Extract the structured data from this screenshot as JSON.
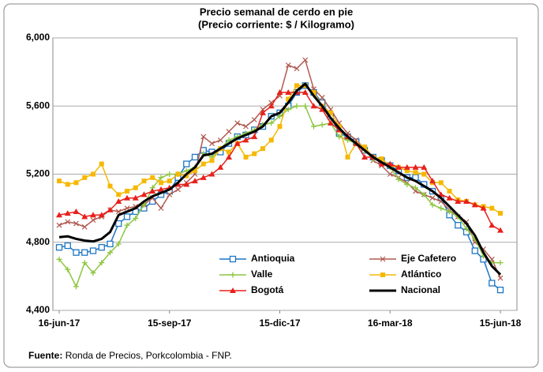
{
  "chart_data": {
    "type": "line",
    "title": "Precio semanal de cerdo en pie",
    "subtitle": "(Precio corriente: $ / Kilogramo)",
    "categories": [
      "16-jun-17",
      null,
      null,
      null,
      null,
      null,
      null,
      null,
      null,
      null,
      null,
      null,
      null,
      "15-sep-17",
      null,
      null,
      null,
      null,
      null,
      null,
      null,
      null,
      null,
      null,
      null,
      null,
      "15-dic-17",
      null,
      null,
      null,
      null,
      null,
      null,
      null,
      null,
      null,
      null,
      null,
      null,
      "16-mar-18",
      null,
      null,
      null,
      null,
      null,
      null,
      null,
      null,
      null,
      null,
      null,
      null,
      "15-jun-18"
    ],
    "ylim": [
      4400,
      6000
    ],
    "yticks": [
      {
        "value": 4400,
        "label": "4,400"
      },
      {
        "value": 4800,
        "label": "4,800"
      },
      {
        "value": 5200,
        "label": "5,200"
      },
      {
        "value": 5600,
        "label": "5,600"
      },
      {
        "value": 6000,
        "label": "6,000"
      }
    ],
    "grid": true,
    "legend": "bottom-right",
    "series": [
      {
        "name": "Antioquia",
        "color": "#1f77c4",
        "marker": "square-open",
        "values": [
          4770,
          4780,
          4740,
          4740,
          4750,
          4770,
          4790,
          4910,
          4950,
          4980,
          5000,
          5040,
          5080,
          5100,
          5180,
          5260,
          5300,
          5340,
          5330,
          5330,
          5380,
          5420,
          5430,
          5460,
          5480,
          5540,
          5560,
          5600,
          5680,
          5720,
          5680,
          5620,
          5540,
          5440,
          5420,
          5390,
          5340,
          5300,
          5280,
          5250,
          5220,
          5180,
          5180,
          5140,
          5100,
          5060,
          4960,
          4900,
          4860,
          4750,
          4700,
          4560,
          4520
        ]
      },
      {
        "name": "Eje Cafetero",
        "color": "#b05a50",
        "marker": "x",
        "values": [
          4900,
          4920,
          4910,
          4890,
          4930,
          4950,
          4990,
          4980,
          5000,
          5010,
          5020,
          5060,
          5000,
          5080,
          5110,
          5150,
          5200,
          5420,
          5380,
          5400,
          5450,
          5500,
          5480,
          5520,
          5580,
          5620,
          5660,
          5840,
          5820,
          5870,
          5700,
          5650,
          5580,
          5500,
          5440,
          5400,
          5350,
          5280,
          5250,
          5200,
          5180,
          5150,
          5100,
          5080,
          5060,
          5040,
          4990,
          4950,
          4920,
          4800,
          4760,
          4700,
          4590
        ]
      },
      {
        "name": "Valle",
        "color": "#8cc63f",
        "marker": "plus",
        "values": [
          4700,
          4640,
          4540,
          4680,
          4620,
          4680,
          4740,
          4790,
          4900,
          4940,
          5020,
          5120,
          5180,
          5200,
          5200,
          5220,
          5240,
          5320,
          5300,
          5350,
          5400,
          5420,
          5440,
          5460,
          5490,
          5500,
          5540,
          5580,
          5600,
          5600,
          5480,
          5490,
          5500,
          5420,
          5400,
          5380,
          5340,
          5290,
          5270,
          5240,
          5170,
          5140,
          5120,
          5080,
          5020,
          5000,
          4980,
          4950,
          4880,
          4820,
          4720,
          4680,
          4680
        ]
      },
      {
        "name": "Atlántico",
        "color": "#f5b800",
        "marker": "square",
        "values": [
          5160,
          5140,
          5150,
          5180,
          5200,
          5260,
          5130,
          5080,
          5100,
          5120,
          5160,
          5180,
          5150,
          5160,
          5200,
          5190,
          5220,
          5260,
          5280,
          5350,
          5330,
          5380,
          5300,
          5320,
          5350,
          5400,
          5480,
          5640,
          5720,
          5720,
          5680,
          5600,
          5560,
          5480,
          5300,
          5380,
          5360,
          5300,
          5290,
          5250,
          5240,
          5220,
          5210,
          5200,
          5150,
          5150,
          5100,
          5050,
          5040,
          5020,
          5010,
          5000,
          4970
        ]
      },
      {
        "name": "Bogotá",
        "color": "#e8201c",
        "marker": "triangle",
        "values": [
          4960,
          4970,
          4980,
          4950,
          4960,
          4960,
          4990,
          5040,
          5060,
          5060,
          5080,
          5100,
          5110,
          5120,
          5140,
          5140,
          5160,
          5180,
          5200,
          5240,
          5300,
          5380,
          5400,
          5420,
          5560,
          5600,
          5680,
          5680,
          5680,
          5680,
          5600,
          5580,
          5500,
          5460,
          5420,
          5380,
          5300,
          5300,
          5260,
          5260,
          5240,
          5240,
          5240,
          5240,
          5160,
          5080,
          5060,
          5040,
          5040,
          5020,
          5000,
          4900,
          4870
        ]
      },
      {
        "name": "Nacional",
        "color": "#000000",
        "marker": "none",
        "values": [
          4830,
          4835,
          4820,
          4810,
          4805,
          4820,
          4860,
          4960,
          4980,
          5000,
          5040,
          5070,
          5090,
          5110,
          5150,
          5200,
          5240,
          5310,
          5320,
          5350,
          5380,
          5410,
          5430,
          5450,
          5480,
          5540,
          5560,
          5620,
          5690,
          5730,
          5660,
          5600,
          5530,
          5470,
          5420,
          5380,
          5340,
          5300,
          5270,
          5240,
          5210,
          5180,
          5160,
          5130,
          5100,
          5060,
          5010,
          4960,
          4910,
          4840,
          4740,
          4660,
          4610
        ]
      }
    ]
  },
  "source_label": "Fuente:",
  "source_text": "Ronda de Precios, Porkcolombia - FNP."
}
